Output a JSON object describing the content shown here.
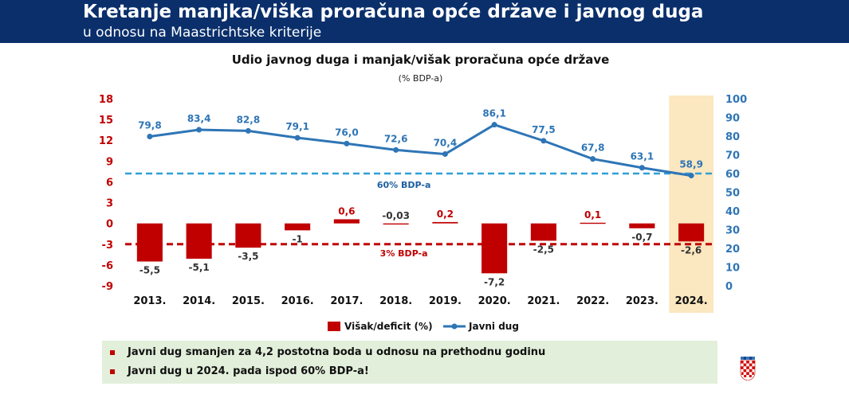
{
  "header": {
    "title": "Kretanje manjka/viška proračuna opće države i javnog duga",
    "subtitle": "u odnosu na Maastrichtske kriterije"
  },
  "chart_data": {
    "type": "bar+line",
    "title": "Udio javnog duga i manjak/višak proračuna opće države",
    "subtitle": "(% BDP-a)",
    "categories": [
      "2013.",
      "2014.",
      "2015.",
      "2016.",
      "2017.",
      "2018.",
      "2019.",
      "2020.",
      "2021.",
      "2022.",
      "2023.",
      "2024."
    ],
    "series": [
      {
        "name": "Višak/deficit (%)",
        "type": "bar",
        "axis": "left",
        "color": "#c00000",
        "values": [
          -5.5,
          -5.1,
          -3.5,
          -1,
          0.6,
          -0.03,
          0.2,
          -7.2,
          -2.5,
          0.1,
          -0.7,
          -2.6
        ],
        "labels": [
          "-5,5",
          "-5,1",
          "-3,5",
          "-1",
          "0,6",
          "-0,03",
          "0,2",
          "-7,2",
          "-2,5",
          "0,1",
          "-0,7",
          "-2,6"
        ]
      },
      {
        "name": "Javni dug",
        "type": "line",
        "axis": "right",
        "color": "#2e75b6",
        "values": [
          79.8,
          83.4,
          82.8,
          79.1,
          76.0,
          72.6,
          70.4,
          86.1,
          77.5,
          67.8,
          63.1,
          58.9
        ],
        "labels": [
          "79,8",
          "83,4",
          "82,8",
          "79,1",
          "76,0",
          "72,6",
          "70,4",
          "86,1",
          "77,5",
          "67,8",
          "63,1",
          "58,9"
        ]
      }
    ],
    "left_axis": {
      "min": -9,
      "max": 18,
      "ticks": [
        "18",
        "15",
        "12",
        "9",
        "6",
        "3",
        "0",
        "-3",
        "-6",
        "-9"
      ],
      "color": "#c00000"
    },
    "right_axis": {
      "min": 0,
      "max": 100,
      "ticks": [
        "100",
        "90",
        "80",
        "70",
        "60",
        "50",
        "40",
        "30",
        "20",
        "10",
        "0"
      ],
      "color": "#2e75b6"
    },
    "reference_lines": [
      {
        "label": "60% BDP-a",
        "value": 60,
        "axis": "right",
        "color": "#2e9fd6"
      },
      {
        "label": "3% BDP-a",
        "value": -3,
        "axis": "left",
        "color": "#c00000"
      }
    ],
    "highlight": {
      "category": "2024.",
      "color": "#fbe7c0"
    },
    "legend": {
      "position": "bottom"
    }
  },
  "notes": [
    "Javni dug smanjen za 4,2 postotna boda u odnosu na prethodnu godinu",
    "Javni dug u 2024. pada ispod 60% BDP-a!"
  ]
}
